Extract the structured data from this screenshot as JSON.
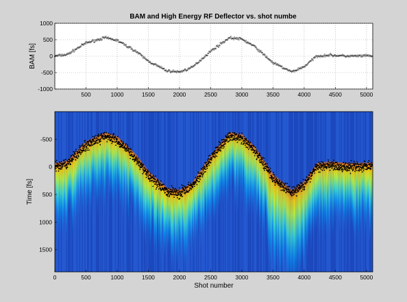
{
  "chart_data": [
    {
      "type": "scatter",
      "title": "BAM and High Energy RF Deflector vs. shot numbe",
      "xlabel": "",
      "ylabel": "BAM [fs]",
      "xlim": [
        0,
        5100
      ],
      "ylim": [
        -1000,
        1000
      ],
      "x_ticks": [
        500,
        1000,
        1500,
        2000,
        2500,
        3000,
        3500,
        4000,
        4500,
        5000
      ],
      "y_ticks": [
        1000,
        500,
        0,
        -500,
        -1000
      ],
      "grid": true,
      "marker_color": "#000000",
      "trend_x": [
        0,
        200,
        500,
        800,
        1000,
        1300,
        1500,
        1800,
        2000,
        2200,
        2500,
        2800,
        3000,
        3200,
        3500,
        3800,
        4000,
        4200,
        4400,
        4700,
        5100
      ],
      "trend_y": [
        0,
        50,
        400,
        560,
        480,
        150,
        -150,
        -450,
        -480,
        -350,
        150,
        560,
        520,
        300,
        -200,
        -480,
        -320,
        0,
        30,
        0,
        10
      ]
    },
    {
      "type": "heatmap",
      "xlabel": "Shot number",
      "ylabel": "Time [fs]",
      "xlim": [
        0,
        5100
      ],
      "ylim": [
        -1000,
        1900
      ],
      "y_inverted": true,
      "x_ticks": [
        0,
        500,
        1000,
        1500,
        2000,
        2500,
        3000,
        3500,
        4000,
        4500,
        5000
      ],
      "y_ticks": [
        -500,
        0,
        500,
        1000,
        1500
      ],
      "colormap": "jet",
      "background_color": "#1f4fc6",
      "marker_color": "#000000",
      "trend_x": [
        0,
        200,
        500,
        800,
        1000,
        1300,
        1500,
        1800,
        2000,
        2200,
        2500,
        2800,
        3000,
        3200,
        3500,
        3800,
        4000,
        4200,
        4400,
        4700,
        5100
      ],
      "trend_y": [
        0,
        -50,
        -400,
        -560,
        -480,
        -150,
        150,
        450,
        480,
        350,
        -150,
        -560,
        -520,
        -300,
        200,
        480,
        320,
        0,
        -30,
        0,
        -10
      ]
    }
  ]
}
